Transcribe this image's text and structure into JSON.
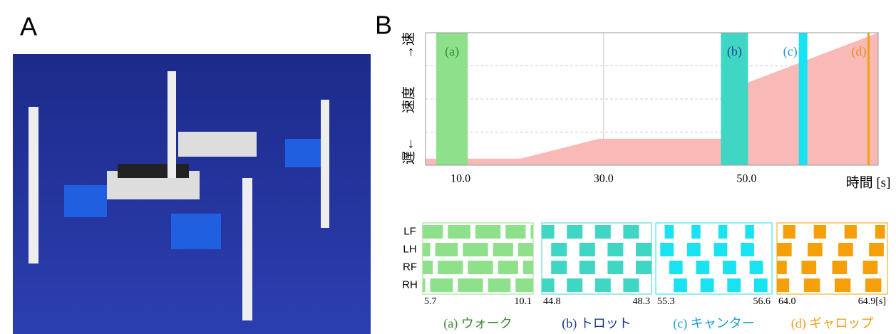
{
  "panels": [
    "A",
    "B"
  ],
  "gait_rows": [
    "LF",
    "LH",
    "RF",
    "RH"
  ],
  "chart_data": [
    {
      "type": "area",
      "x": [
        5.1,
        18.4,
        29.4,
        47.8,
        47.8,
        68.4
      ],
      "values": [
        0.2,
        0.2,
        0.8,
        0.8,
        2.3,
        4.0
      ],
      "color": "#f9b9b7",
      "xlim": [
        5.1,
        68.4
      ],
      "ylim": [
        0,
        4
      ],
      "xticks": [
        {
          "value": 10,
          "label": "10.0"
        },
        {
          "value": 30,
          "label": "30.0"
        },
        {
          "value": 50,
          "label": "50.0"
        }
      ],
      "ygrid": [
        1,
        2,
        3
      ],
      "grid": true,
      "x_label": "時間 [s]",
      "y_labels": [
        "遅←",
        "速度",
        "→速"
      ],
      "bands": [
        {
          "name": "(a)",
          "color": "#8fe08a",
          "text_color": "#2f8f2f",
          "range": [
            6.6,
            11.0
          ]
        },
        {
          "name": "(b)",
          "color": "#40d6c4",
          "text_color": "#1a4aa0",
          "range": [
            46.4,
            50.2
          ]
        },
        {
          "name": "(c)",
          "color": "#19e3f3",
          "text_color": "#1a9ad0",
          "range": [
            57.3,
            58.5
          ]
        },
        {
          "name": "(d)",
          "color": "#f5a00a",
          "text_color": "#f08a20",
          "range": [
            66.9,
            67.2
          ]
        }
      ]
    },
    {
      "type": "gait",
      "legend": "(a) ウォーク",
      "legend_color": "#3f8a30",
      "color": "#8fe08a",
      "xlim": [
        5.7,
        10.1
      ],
      "xticks": [
        {
          "value": 5.7,
          "label": "5.7"
        },
        {
          "value": 10.1,
          "label": "10.1"
        }
      ],
      "stance": [
        [
          [
            5.7,
            6.5
          ],
          [
            6.7,
            7.6
          ],
          [
            7.8,
            8.8
          ],
          [
            9.0,
            9.8
          ],
          [
            10.0,
            10.1
          ]
        ],
        [
          [
            5.7,
            6.0
          ],
          [
            6.2,
            7.1
          ],
          [
            7.3,
            8.3
          ],
          [
            8.5,
            9.3
          ],
          [
            9.5,
            10.1
          ]
        ],
        [
          [
            5.7,
            6.1
          ],
          [
            6.3,
            7.3
          ],
          [
            7.5,
            8.5
          ],
          [
            8.7,
            9.5
          ],
          [
            9.7,
            10.1
          ]
        ],
        [
          [
            5.7,
            5.8
          ],
          [
            6.0,
            6.9
          ],
          [
            7.1,
            8.1
          ],
          [
            8.3,
            9.2
          ],
          [
            9.4,
            10.1
          ]
        ]
      ]
    },
    {
      "type": "gait",
      "legend": "(b) トロット",
      "legend_color": "#1a3a8a",
      "color": "#40d6c4",
      "xlim": [
        44.8,
        48.3
      ],
      "xticks": [
        {
          "value": 44.8,
          "label": "44.8"
        },
        {
          "value": 48.3,
          "label": "48.3"
        }
      ],
      "stance": [
        [
          [
            44.8,
            45.2
          ],
          [
            45.6,
            46.1
          ],
          [
            46.5,
            47.0
          ],
          [
            47.4,
            47.9
          ]
        ],
        [
          [
            45.1,
            45.6
          ],
          [
            46.0,
            46.5
          ],
          [
            46.9,
            47.4
          ],
          [
            47.8,
            48.3
          ]
        ],
        [
          [
            45.1,
            45.6
          ],
          [
            46.0,
            46.5
          ],
          [
            46.9,
            47.4
          ],
          [
            47.8,
            48.3
          ]
        ],
        [
          [
            44.8,
            45.2
          ],
          [
            45.6,
            46.1
          ],
          [
            46.5,
            47.0
          ],
          [
            47.4,
            47.9
          ]
        ]
      ]
    },
    {
      "type": "gait",
      "legend": "(c) キャンター",
      "legend_color": "#1aa0d0",
      "color": "#19e3f3",
      "xlim": [
        55.3,
        56.6
      ],
      "xticks": [
        {
          "value": 55.3,
          "label": "55.3"
        },
        {
          "value": 56.6,
          "label": "56.6"
        }
      ],
      "stance": [
        [
          [
            55.4,
            55.5
          ],
          [
            55.7,
            55.8
          ],
          [
            56.0,
            56.1
          ],
          [
            56.3,
            56.4
          ]
        ],
        [
          [
            55.35,
            55.5
          ],
          [
            55.65,
            55.8
          ],
          [
            55.95,
            56.1
          ],
          [
            56.25,
            56.4
          ]
        ],
        [
          [
            55.45,
            55.6
          ],
          [
            55.75,
            55.9
          ],
          [
            56.05,
            56.2
          ],
          [
            56.35,
            56.5
          ]
        ],
        [
          [
            55.5,
            55.65
          ],
          [
            55.8,
            55.95
          ],
          [
            56.1,
            56.25
          ],
          [
            56.4,
            56.55
          ]
        ]
      ]
    },
    {
      "type": "gait",
      "legend": "(d) ギャロップ",
      "legend_color": "#f0a020",
      "color": "#f5a00a",
      "xlim": [
        64.0,
        64.9
      ],
      "xticks": [
        {
          "value": 64.0,
          "label": "64.0"
        },
        {
          "value": 64.9,
          "label": "64.9[s]"
        }
      ],
      "stance": [
        [
          [
            64.05,
            64.15
          ],
          [
            64.3,
            64.4
          ],
          [
            64.55,
            64.65
          ],
          [
            64.8,
            64.88
          ]
        ],
        [
          [
            64.0,
            64.12
          ],
          [
            64.25,
            64.37
          ],
          [
            64.5,
            64.62
          ],
          [
            64.75,
            64.87
          ]
        ],
        [
          [
            64.0,
            64.08
          ],
          [
            64.2,
            64.32
          ],
          [
            64.45,
            64.57
          ],
          [
            64.7,
            64.82
          ]
        ],
        [
          [
            64.0,
            64.1
          ],
          [
            64.22,
            64.35
          ],
          [
            64.47,
            64.6
          ],
          [
            64.72,
            64.85
          ]
        ]
      ]
    }
  ]
}
